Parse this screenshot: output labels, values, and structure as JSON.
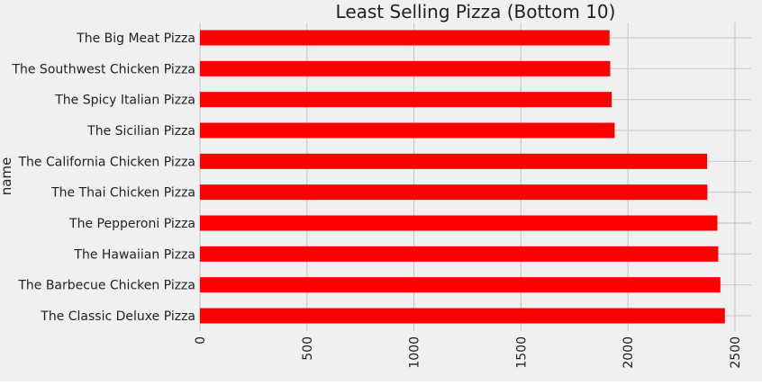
{
  "chart_data": {
    "type": "bar",
    "orientation": "horizontal",
    "title": "Least Selling Pizza (Bottom 10)",
    "xlabel": "",
    "ylabel": "name",
    "categories": [
      "The Big Meat Pizza",
      "The Southwest Chicken Pizza",
      "The Spicy Italian Pizza",
      "The Sicilian Pizza",
      "The California Chicken Pizza",
      "The Thai Chicken Pizza",
      "The Pepperoni Pizza",
      "The Hawaiian Pizza",
      "The Barbecue Chicken Pizza",
      "The Classic Deluxe Pizza"
    ],
    "values": [
      1914,
      1917,
      1924,
      1938,
      2370,
      2371,
      2418,
      2422,
      2432,
      2453
    ],
    "xlim": [
      0,
      2576
    ],
    "xticks": [
      0,
      500,
      1000,
      1500,
      2000,
      2500
    ],
    "tick_label_rotation": 90,
    "grid": true,
    "bar_color": "#ff0000",
    "background_color": "#f0f0f0",
    "grid_color": "#cbcbcb"
  }
}
